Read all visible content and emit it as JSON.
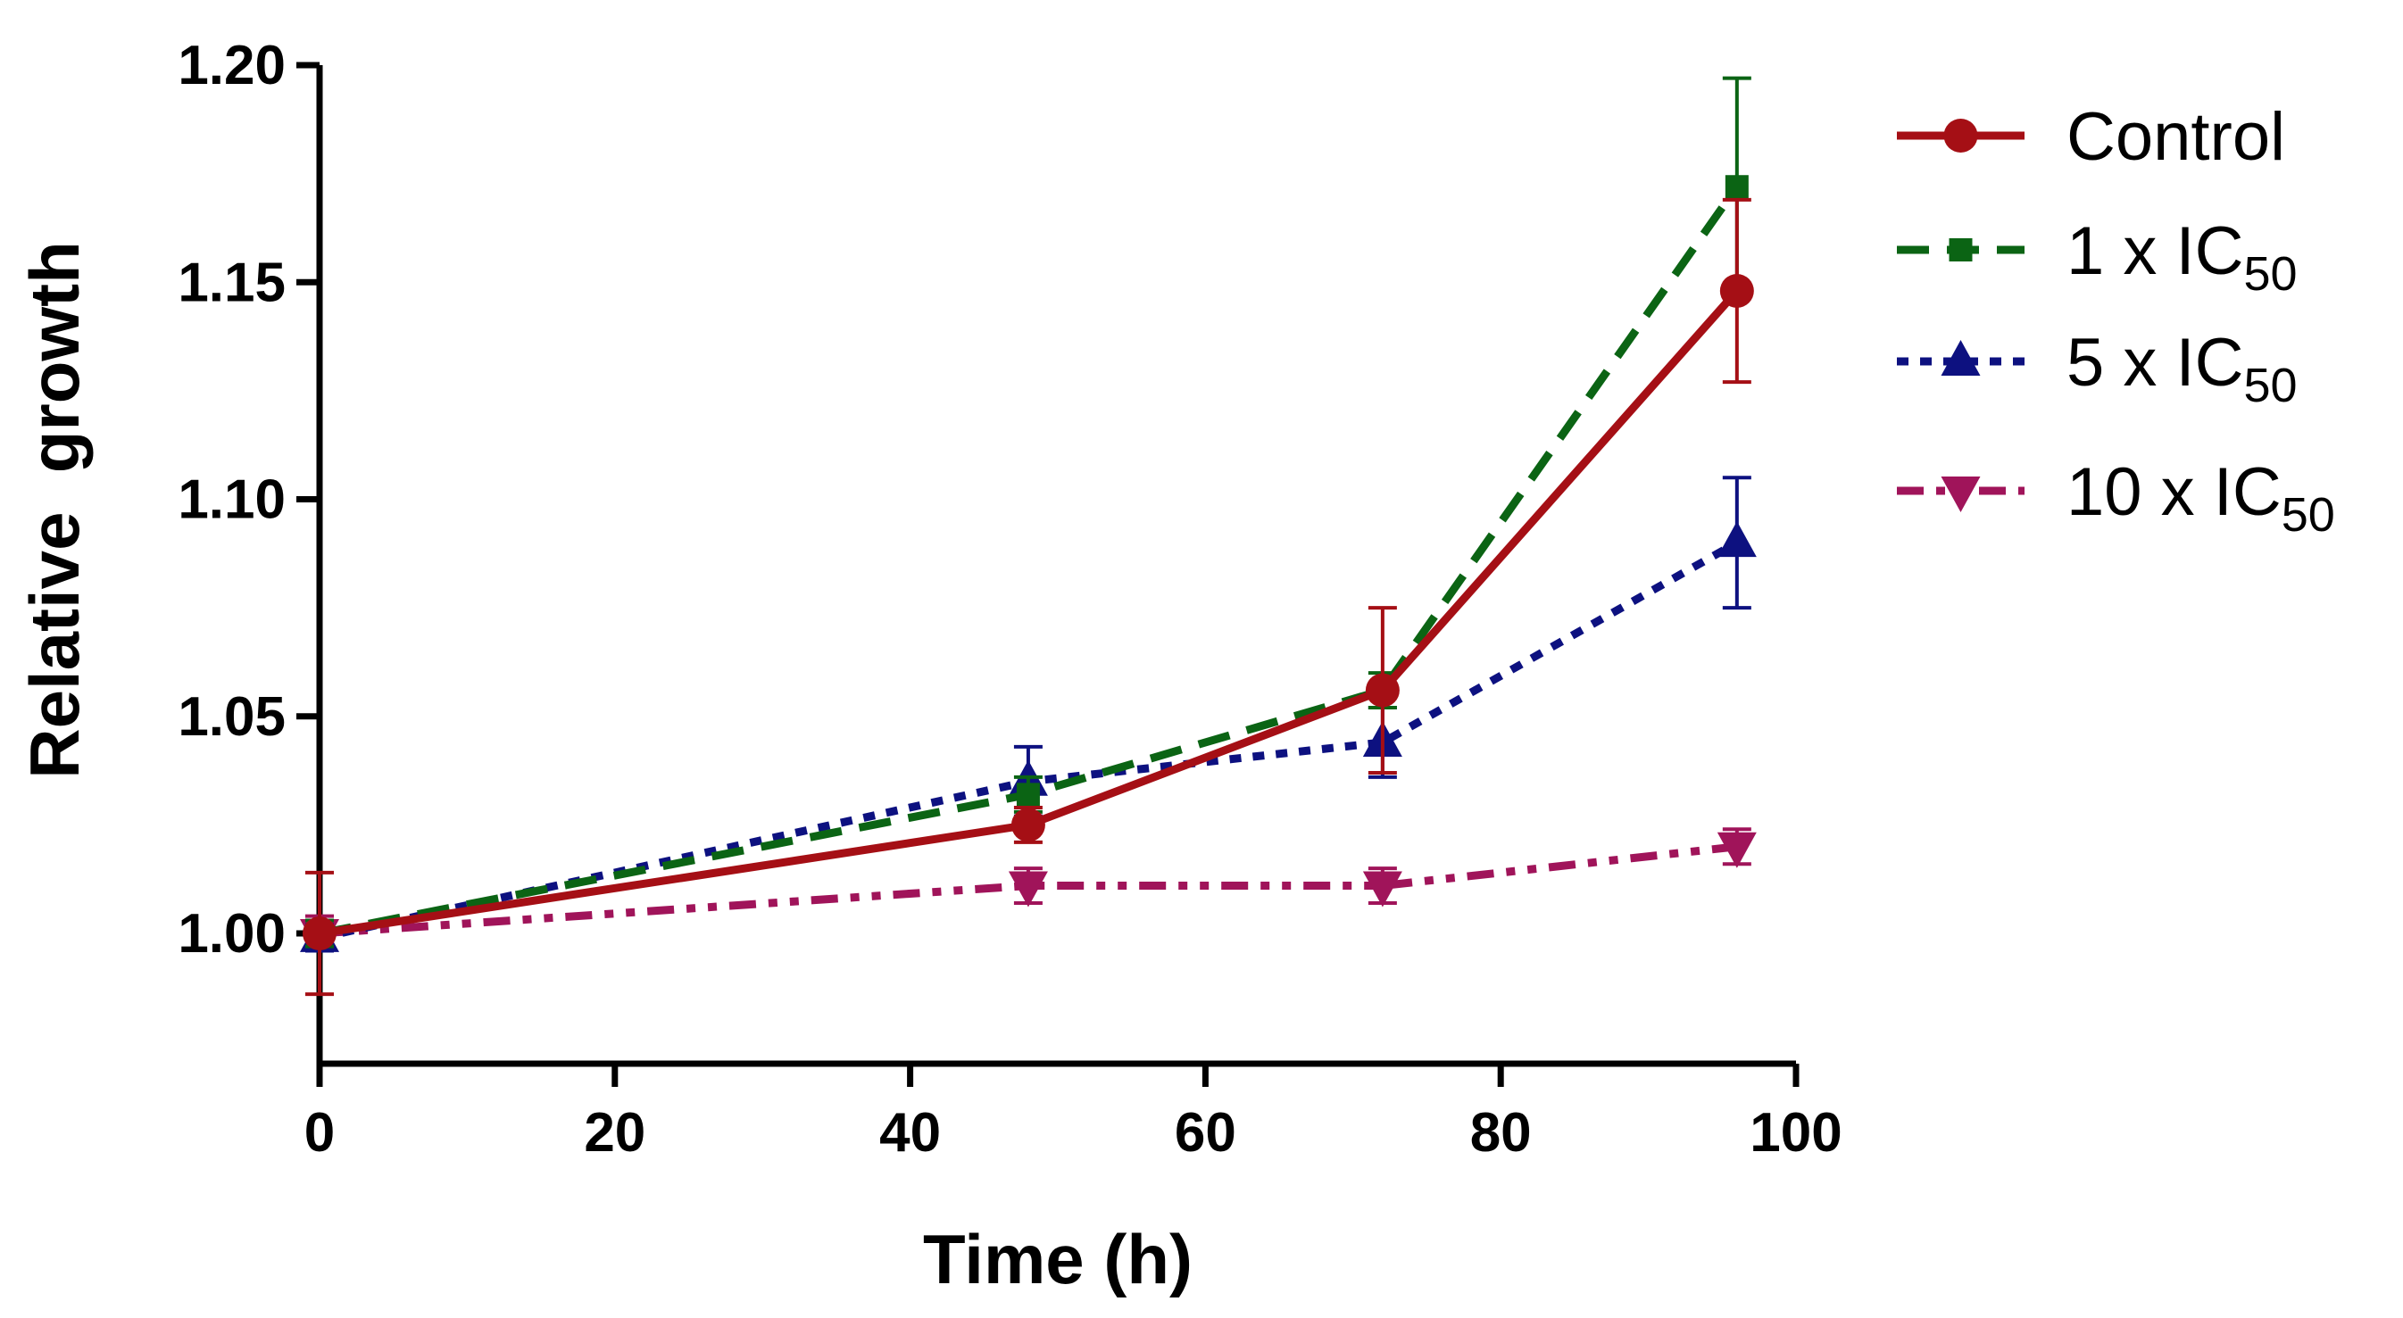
{
  "chart_data": {
    "type": "line",
    "title": "",
    "xlabel": "Time (h)",
    "ylabel": "Relative  growth",
    "xlim": [
      0,
      100
    ],
    "ylim": [
      0.97,
      1.2
    ],
    "xticks": [
      0,
      20,
      40,
      60,
      80,
      100
    ],
    "xtick_labels": [
      "0",
      "20",
      "40",
      "60",
      "80",
      "100"
    ],
    "yticks": [
      1.0,
      1.05,
      1.1,
      1.15,
      1.2
    ],
    "ytick_labels": [
      "1.00",
      "1.05",
      "1.10",
      "1.15",
      "1.20"
    ],
    "legend_position": "right",
    "series": [
      {
        "name": "Control",
        "legend_prefix": "Control",
        "legend_sub": "",
        "color": "#a50f15",
        "dash": "solid",
        "marker": "circle",
        "x": [
          0,
          48,
          72,
          96
        ],
        "y": [
          1.0,
          1.025,
          1.056,
          1.148
        ],
        "err": [
          0.014,
          0.004,
          0.019,
          0.021
        ]
      },
      {
        "name": "1 x IC50",
        "legend_prefix": "1 x IC",
        "legend_sub": "50",
        "color": "#0b6414",
        "dash": "dashed",
        "marker": "square",
        "x": [
          0,
          48,
          72,
          96
        ],
        "y": [
          1.0,
          1.032,
          1.056,
          1.172
        ],
        "err": [
          0.003,
          0.004,
          0.004,
          0.025
        ]
      },
      {
        "name": "5 x IC50",
        "legend_prefix": "5 x IC",
        "legend_sub": "50",
        "color": "#0d1180",
        "dash": "dotted",
        "marker": "triangle-up",
        "x": [
          0,
          48,
          72,
          96
        ],
        "y": [
          0.999,
          1.035,
          1.044,
          1.09
        ],
        "err": [
          0.003,
          0.008,
          0.008,
          0.015
        ]
      },
      {
        "name": "10 x IC50",
        "legend_prefix": "10 x IC",
        "legend_sub": "50",
        "color": "#a0145a",
        "dash": "dashdotdot",
        "marker": "triangle-down",
        "x": [
          0,
          48,
          72,
          96
        ],
        "y": [
          1.0,
          1.011,
          1.011,
          1.02
        ],
        "err": [
          0.004,
          0.004,
          0.004,
          0.004
        ]
      }
    ]
  }
}
